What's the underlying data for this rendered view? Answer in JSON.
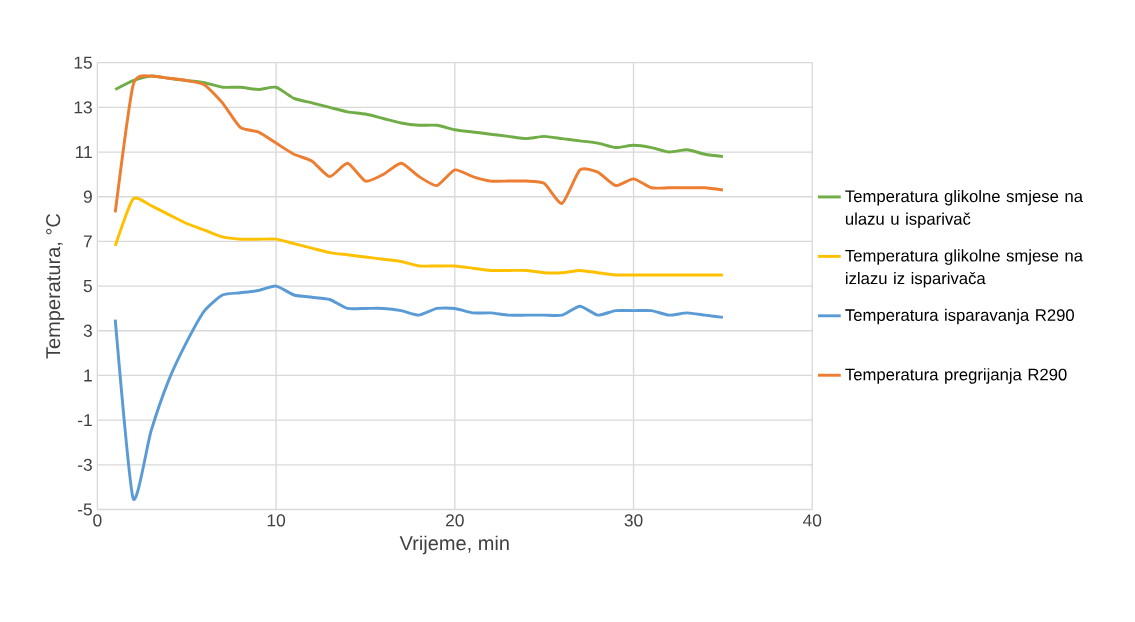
{
  "chart_data": {
    "type": "line",
    "xlabel": "Vrijeme, min",
    "ylabel": "Temperatura, °C",
    "x": [
      1,
      2,
      3,
      4,
      5,
      6,
      7,
      8,
      9,
      10,
      11,
      12,
      13,
      14,
      15,
      16,
      17,
      18,
      19,
      20,
      21,
      22,
      23,
      24,
      25,
      26,
      27,
      28,
      29,
      30,
      31,
      32,
      33,
      34,
      35
    ],
    "series": [
      {
        "name": "Temperatura glikolne smjese na ulazu u isparivač",
        "color": "#70ad47",
        "values": [
          13.8,
          14.2,
          14.4,
          14.3,
          14.2,
          14.1,
          13.9,
          13.9,
          13.8,
          13.9,
          13.4,
          13.2,
          13.0,
          12.8,
          12.7,
          12.5,
          12.3,
          12.2,
          12.2,
          12.0,
          11.9,
          11.8,
          11.7,
          11.6,
          11.7,
          11.6,
          11.5,
          11.4,
          11.2,
          11.3,
          11.2,
          11.0,
          11.1,
          10.9,
          10.8
        ]
      },
      {
        "name": "Temperatura glikolne smjese na izlazu iz isparivača",
        "color": "#ffc000",
        "values": [
          6.8,
          8.9,
          8.6,
          8.2,
          7.8,
          7.5,
          7.2,
          7.1,
          7.1,
          7.1,
          6.9,
          6.7,
          6.5,
          6.4,
          6.3,
          6.2,
          6.1,
          5.9,
          5.9,
          5.9,
          5.8,
          5.7,
          5.7,
          5.7,
          5.6,
          5.6,
          5.7,
          5.6,
          5.5,
          5.5,
          5.5,
          5.5,
          5.5,
          5.5,
          5.5
        ]
      },
      {
        "name": "Temperatura isparavanja R290",
        "color": "#5b9bd5",
        "values": [
          3.5,
          -4.5,
          -1.5,
          0.8,
          2.5,
          3.9,
          4.6,
          4.7,
          4.8,
          5.0,
          4.6,
          4.5,
          4.4,
          4.0,
          4.0,
          4.0,
          3.9,
          3.7,
          4.0,
          4.0,
          3.8,
          3.8,
          3.7,
          3.7,
          3.7,
          3.7,
          4.1,
          3.7,
          3.9,
          3.9,
          3.9,
          3.7,
          3.8,
          3.7,
          3.6
        ]
      },
      {
        "name": "Temperatura pregrijanja R290",
        "color": "#ed7d31",
        "values": [
          8.3,
          14.0,
          14.4,
          14.3,
          14.2,
          14.0,
          13.2,
          12.1,
          11.9,
          11.4,
          10.9,
          10.6,
          9.9,
          10.5,
          9.7,
          10.0,
          10.5,
          9.9,
          9.5,
          10.2,
          9.9,
          9.7,
          9.7,
          9.7,
          9.6,
          8.7,
          10.2,
          10.1,
          9.5,
          9.8,
          9.4,
          9.4,
          9.4,
          9.4,
          9.3
        ]
      }
    ],
    "xlim": [
      0,
      40
    ],
    "xticks": [
      0,
      10,
      20,
      30,
      40
    ],
    "ylim": [
      -5,
      15
    ],
    "yticks": [
      -5,
      -3,
      -1,
      1,
      3,
      5,
      7,
      9,
      11,
      13,
      15
    ],
    "grid": true,
    "legend": "right",
    "marker": "none",
    "line_style": "solid"
  }
}
